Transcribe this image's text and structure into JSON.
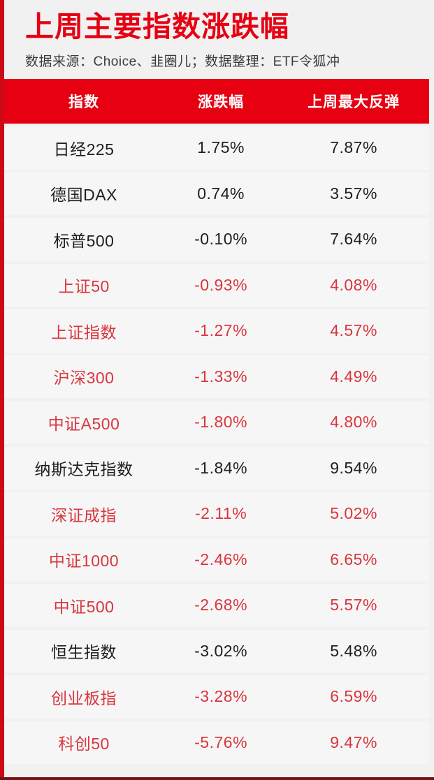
{
  "page": {
    "title": "上周主要指数涨跌幅",
    "subtitle": "数据来源：Choice、韭圈儿；数据整理：ETF令狐冲"
  },
  "colors": {
    "accent_red": "#e60012",
    "left_strip_red": "#cc0a16",
    "bottom_line_red": "#701418",
    "negative_text_red": "#d9363d",
    "neutral_text_black": "#1f1f1f",
    "header_text_white": "#ffffff"
  },
  "table": {
    "columns": [
      "指数",
      "涨跌幅",
      "上周最大反弹"
    ],
    "rows": [
      {
        "name": "日经225",
        "change": "1.75%",
        "rebound": "7.87%",
        "color": "black"
      },
      {
        "name": "德国DAX",
        "change": "0.74%",
        "rebound": "3.57%",
        "color": "black"
      },
      {
        "name": "标普500",
        "change": "-0.10%",
        "rebound": "7.64%",
        "color": "black"
      },
      {
        "name": "上证50",
        "change": "-0.93%",
        "rebound": "4.08%",
        "color": "red"
      },
      {
        "name": "上证指数",
        "change": "-1.27%",
        "rebound": "4.57%",
        "color": "red"
      },
      {
        "name": "沪深300",
        "change": "-1.33%",
        "rebound": "4.49%",
        "color": "red"
      },
      {
        "name": "中证A500",
        "change": "-1.80%",
        "rebound": "4.80%",
        "color": "red"
      },
      {
        "name": "纳斯达克指数",
        "change": "-1.84%",
        "rebound": "9.54%",
        "color": "black"
      },
      {
        "name": "深证成指",
        "change": "-2.11%",
        "rebound": "5.02%",
        "color": "red"
      },
      {
        "name": "中证1000",
        "change": "-2.46%",
        "rebound": "6.65%",
        "color": "red"
      },
      {
        "name": "中证500",
        "change": "-2.68%",
        "rebound": "5.57%",
        "color": "red"
      },
      {
        "name": "恒生指数",
        "change": "-3.02%",
        "rebound": "5.48%",
        "color": "black"
      },
      {
        "name": "创业板指",
        "change": "-3.28%",
        "rebound": "6.59%",
        "color": "red"
      },
      {
        "name": "科创50",
        "change": "-5.76%",
        "rebound": "9.47%",
        "color": "red"
      }
    ]
  },
  "chart_data": {
    "type": "table",
    "title": "上周主要指数涨跌幅",
    "subtitle": "数据来源：Choice、韭圈儿；数据整理：ETF令狐冲",
    "columns": [
      "指数",
      "涨跌幅",
      "上周最大反弹"
    ],
    "units": "%",
    "rows": [
      [
        "日经225",
        1.75,
        7.87
      ],
      [
        "德国DAX",
        0.74,
        3.57
      ],
      [
        "标普500",
        -0.1,
        7.64
      ],
      [
        "上证50",
        -0.93,
        4.08
      ],
      [
        "上证指数",
        -1.27,
        4.57
      ],
      [
        "沪深300",
        -1.33,
        4.49
      ],
      [
        "中证A500",
        -1.8,
        4.8
      ],
      [
        "纳斯达克指数",
        -1.84,
        9.54
      ],
      [
        "深证成指",
        -2.11,
        5.02
      ],
      [
        "中证1000",
        -2.46,
        6.65
      ],
      [
        "中证500",
        -2.68,
        5.57
      ],
      [
        "恒生指数",
        -3.02,
        5.48
      ],
      [
        "创业板指",
        -3.28,
        6.59
      ],
      [
        "科创50",
        -5.76,
        9.47
      ]
    ]
  }
}
